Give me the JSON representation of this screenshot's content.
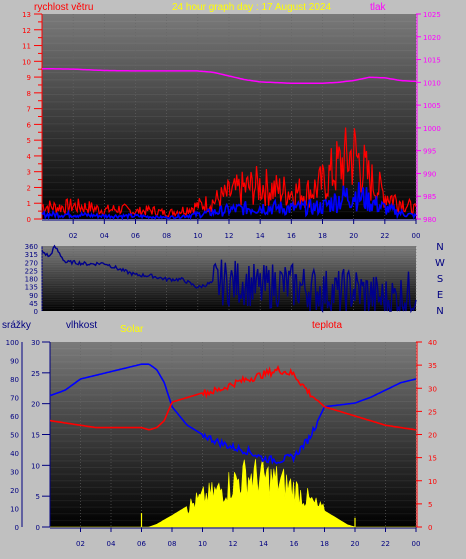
{
  "chart_data": [
    {
      "type": "line",
      "title": "24 hour graph day : 17 August 2024",
      "left_axis_label": "rychlost větru",
      "right_axis_label": "tlak",
      "left_ylim": [
        0,
        13
      ],
      "right_ylim": [
        980,
        1025
      ],
      "left_ticks": [
        "0",
        "1",
        "2",
        "3",
        "4",
        "5",
        "6",
        "7",
        "8",
        "9",
        "10",
        "11",
        "12",
        "13"
      ],
      "right_ticks": [
        "980",
        "985",
        "990",
        "995",
        "1000",
        "1005",
        "1010",
        "1015",
        "1020",
        "1025"
      ],
      "x_ticks": [
        "02",
        "04",
        "06",
        "08",
        "10",
        "12",
        "14",
        "16",
        "18",
        "20",
        "22",
        "00"
      ],
      "series": [
        {
          "key": "pressure",
          "unit": "hPa",
          "color": "#ff00ff",
          "x": [
            0,
            2,
            4,
            6,
            8,
            10,
            11,
            12,
            13,
            14,
            16,
            18,
            19,
            20,
            21,
            22,
            23,
            24
          ],
          "y": [
            1013.0,
            1012.9,
            1012.6,
            1012.5,
            1012.5,
            1012.5,
            1012.2,
            1011.4,
            1010.6,
            1010.1,
            1009.8,
            1009.8,
            1010.0,
            1010.4,
            1011.1,
            1011.0,
            1010.4,
            1010.2
          ]
        },
        {
          "key": "gust",
          "unit": "m/s",
          "color": "#ff0000",
          "x": [
            0,
            1,
            2,
            3,
            4,
            5,
            6,
            7,
            8,
            9,
            10,
            11,
            12,
            13,
            14,
            15,
            16,
            17,
            18,
            19,
            19.5,
            20,
            20.5,
            21,
            22,
            23,
            24
          ],
          "y": [
            0.9,
            0.8,
            0.9,
            0.8,
            0.6,
            0.7,
            0.5,
            0.6,
            0.4,
            0.6,
            0.9,
            1.2,
            1.7,
            2.1,
            2.3,
            2.0,
            1.9,
            1.8,
            2.4,
            3.6,
            4.0,
            4.5,
            3.7,
            2.7,
            1.7,
            1.2,
            0.6
          ]
        },
        {
          "key": "average",
          "unit": "m/s",
          "color": "#0000ff",
          "x": [
            0,
            2,
            4,
            6,
            8,
            10,
            12,
            14,
            16,
            18,
            19,
            20,
            21,
            22,
            23,
            24
          ],
          "y": [
            0.3,
            0.3,
            0.2,
            0.2,
            0.1,
            0.3,
            0.6,
            0.8,
            0.7,
            0.8,
            1.3,
            1.7,
            1.2,
            0.7,
            0.4,
            0.2
          ]
        }
      ]
    },
    {
      "type": "line",
      "ylim": [
        0,
        360
      ],
      "left_ticks": [
        "0",
        "45",
        "90",
        "135",
        "180",
        "225",
        "270",
        "315",
        "360"
      ],
      "right_ticks": [
        "N",
        "W",
        "S",
        "E",
        "N"
      ],
      "x_ticks": [
        "02",
        "04",
        "06",
        "08",
        "10",
        "12",
        "14",
        "16",
        "18",
        "20",
        "22",
        "00"
      ],
      "series": [
        {
          "key": "wind_direction",
          "unit": "°",
          "color": "#00008b",
          "x": [
            0,
            0.5,
            0.8,
            1.5,
            2,
            3,
            4,
            5,
            6,
            7,
            8,
            9,
            10,
            11,
            12,
            13,
            14,
            15,
            16,
            17,
            18,
            19,
            20,
            21,
            22,
            23,
            24
          ],
          "y": [
            330,
            300,
            360,
            270,
            270,
            260,
            265,
            230,
            200,
            195,
            175,
            175,
            130,
            160,
            155,
            160,
            120,
            150,
            140,
            130,
            110,
            100,
            120,
            90,
            60,
            80,
            110
          ]
        }
      ]
    },
    {
      "type": "line",
      "title_labels": {
        "precipitation": "srážky",
        "humidity": "vlhkost",
        "solar": "Solar",
        "temperature": "teplota"
      },
      "humidity_ylim": [
        0,
        100
      ],
      "precip_ylim": [
        0,
        30
      ],
      "solar_ylim": [
        0,
        40
      ],
      "temp_ylim": [
        0,
        40
      ],
      "left_ticks_outer": [
        "0",
        "10",
        "20",
        "30",
        "40",
        "50",
        "60",
        "70",
        "80",
        "90",
        "100"
      ],
      "left_ticks_inner": [
        "0",
        "5",
        "10",
        "15",
        "20",
        "25",
        "30"
      ],
      "right_ticks": [
        "0",
        "5",
        "10",
        "15",
        "20",
        "25",
        "30",
        "35",
        "40"
      ],
      "x_ticks": [
        "02",
        "04",
        "06",
        "08",
        "10",
        "12",
        "14",
        "16",
        "18",
        "20",
        "22",
        "00"
      ],
      "series": [
        {
          "key": "humidity",
          "unit": "%",
          "color": "#0000ff",
          "x": [
            0,
            1,
            2,
            3,
            4,
            5,
            6,
            6.5,
            7,
            7.5,
            8,
            9,
            10,
            11,
            12,
            13,
            14,
            15,
            16,
            17,
            18,
            19,
            20,
            21,
            22,
            23,
            24
          ],
          "y": [
            71,
            74,
            80,
            82,
            84,
            86,
            88,
            88,
            85,
            78,
            65,
            55,
            50,
            46,
            43,
            41,
            37,
            36,
            38,
            48,
            65,
            66,
            67,
            70,
            74,
            78,
            80
          ]
        },
        {
          "key": "temperature",
          "unit": "°C",
          "color": "#ff0000",
          "x": [
            0,
            1,
            2,
            3,
            4,
            5,
            6,
            6.5,
            7,
            7.5,
            8,
            9,
            10,
            11,
            12,
            13,
            14,
            15,
            16,
            17,
            18,
            19,
            20,
            21,
            22,
            23,
            24
          ],
          "y": [
            23,
            22.5,
            22,
            21.5,
            21.5,
            21.5,
            21.5,
            21,
            21.5,
            23,
            27,
            28,
            29,
            29.5,
            31,
            32,
            33,
            34,
            33,
            29,
            26,
            25,
            24,
            23,
            22,
            21.5,
            21
          ]
        },
        {
          "key": "solar",
          "unit": "",
          "color": "#ffff00",
          "x": [
            0,
            6.5,
            7,
            8,
            9,
            10,
            11,
            12,
            12.5,
            13,
            14,
            15,
            16,
            17,
            18,
            19,
            19.5,
            20,
            24
          ],
          "y": [
            0,
            0,
            0.6,
            2.5,
            4.5,
            6.5,
            8,
            10,
            11,
            11.5,
            11.2,
            10.3,
            8.7,
            6,
            3.5,
            1.5,
            0.5,
            0,
            0
          ]
        },
        {
          "key": "precipitation",
          "unit": "mm",
          "color": "#ffff00",
          "x": [],
          "y": []
        }
      ]
    }
  ]
}
